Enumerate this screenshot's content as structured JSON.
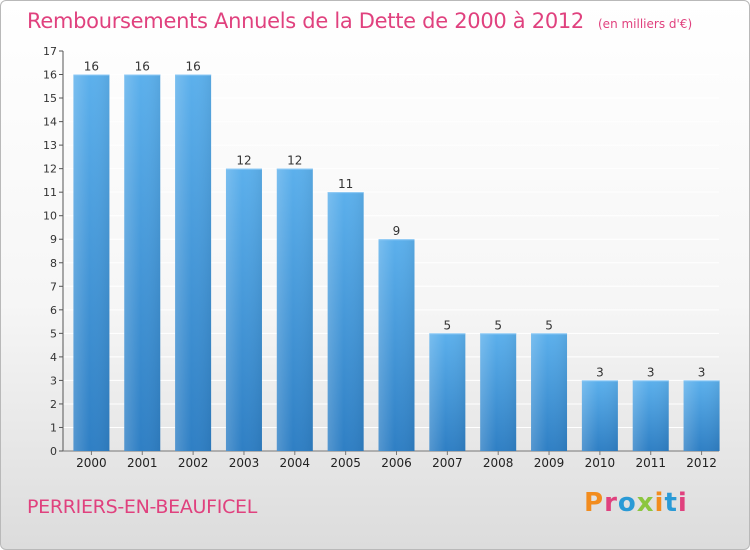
{
  "chart_data": {
    "type": "bar",
    "title": "Remboursements Annuels de la Dette de 2000 à 2012",
    "unit_note": "(en milliers d'€)",
    "categories": [
      "2000",
      "2001",
      "2002",
      "2003",
      "2004",
      "2005",
      "2006",
      "2007",
      "2008",
      "2009",
      "2010",
      "2011",
      "2012"
    ],
    "values": [
      16,
      16,
      16,
      12,
      12,
      11,
      9,
      5,
      5,
      5,
      3,
      3,
      3
    ],
    "ylim": [
      0,
      17
    ],
    "yticks": [
      0,
      1,
      2,
      3,
      4,
      5,
      6,
      7,
      8,
      9,
      10,
      11,
      12,
      13,
      14,
      15,
      16,
      17
    ],
    "grid": true,
    "xlabel": "",
    "ylabel": "",
    "bar_color": "#4a98d8"
  },
  "footer": {
    "municipality": "PERRIERS-EN-BEAUFICEL",
    "logo_text": "Proxiti",
    "logo_colors": [
      "#f28c1e",
      "#e0417e",
      "#2a9ad6",
      "#8cc63f",
      "#f28c1e",
      "#2a9ad6",
      "#e0417e"
    ]
  },
  "colors": {
    "title": "#e0417e",
    "grid": "#ffffff"
  }
}
